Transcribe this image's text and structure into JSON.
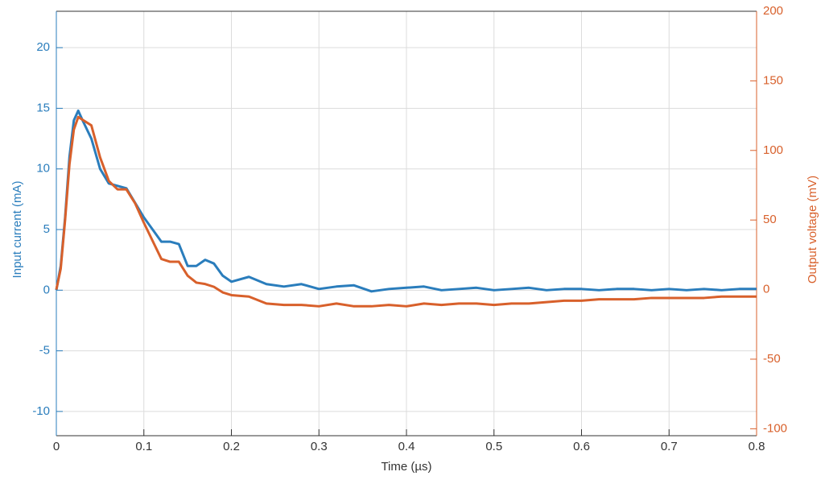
{
  "chart_data": {
    "type": "line",
    "xlabel": "Time (µs)",
    "ylabel": "Input current (mA)",
    "y2label": "Output voltage (mV)",
    "x": [
      0,
      0.005,
      0.01,
      0.015,
      0.02,
      0.025,
      0.03,
      0.04,
      0.05,
      0.06,
      0.07,
      0.08,
      0.09,
      0.1,
      0.11,
      0.12,
      0.13,
      0.14,
      0.15,
      0.16,
      0.17,
      0.18,
      0.19,
      0.2,
      0.22,
      0.24,
      0.26,
      0.28,
      0.3,
      0.32,
      0.34,
      0.36,
      0.38,
      0.4,
      0.42,
      0.44,
      0.46,
      0.48,
      0.5,
      0.52,
      0.54,
      0.56,
      0.58,
      0.6,
      0.62,
      0.64,
      0.66,
      0.68,
      0.7,
      0.72,
      0.74,
      0.76,
      0.78,
      0.8
    ],
    "series": [
      {
        "name": "Input current",
        "color": "#2a7dbc",
        "axis": "y",
        "values": [
          0,
          2,
          6,
          11,
          14,
          14.8,
          14,
          12.5,
          10,
          8.8,
          8.6,
          8.4,
          7.2,
          6,
          5,
          4,
          4,
          3.8,
          2,
          2,
          2.5,
          2.2,
          1.2,
          0.7,
          1.1,
          0.5,
          0.3,
          0.5,
          0.1,
          0.3,
          0.4,
          -0.1,
          0.1,
          0.2,
          0.3,
          0,
          0.1,
          0.2,
          0,
          0.1,
          0.2,
          0,
          0.1,
          0.1,
          0,
          0.1,
          0.1,
          0,
          0.1,
          0,
          0.1,
          0,
          0.1,
          0.1
        ]
      },
      {
        "name": "Output voltage",
        "color": "#d8602b",
        "axis": "y2",
        "values": [
          0,
          15,
          50,
          90,
          115,
          124,
          122,
          118,
          95,
          78,
          72,
          72,
          62,
          48,
          35,
          22,
          20,
          20,
          10,
          5,
          4,
          2,
          -2,
          -4,
          -5,
          -10,
          -11,
          -11,
          -12,
          -10,
          -12,
          -12,
          -11,
          -12,
          -10,
          -11,
          -10,
          -10,
          -11,
          -10,
          -10,
          -9,
          -8,
          -8,
          -7,
          -7,
          -7,
          -6,
          -6,
          -6,
          -6,
          -5,
          -5,
          -5
        ]
      }
    ],
    "xlim": [
      0,
      0.8
    ],
    "xticks": [
      0,
      0.1,
      0.2,
      0.3,
      0.4,
      0.5,
      0.6,
      0.7,
      0.8
    ],
    "ylim": [
      -12,
      23
    ],
    "yticks": [
      -10,
      -5,
      0,
      5,
      10,
      15,
      20
    ],
    "y2lim": [
      -105,
      200
    ],
    "y2ticks": [
      -100,
      -50,
      0,
      50,
      100,
      150,
      200
    ],
    "grid": true
  }
}
